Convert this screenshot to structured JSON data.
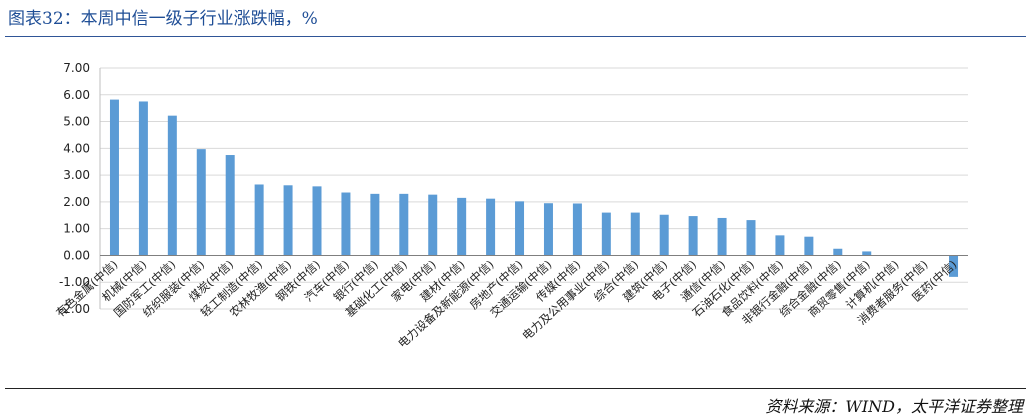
{
  "header": {
    "title": "图表32：本周中信一级子行业涨跌幅，%"
  },
  "footer": {
    "source": "资料来源：WIND，太平洋证券整理"
  },
  "colors": {
    "bar": "#5b9bd5",
    "title": "#1f4e96",
    "grid": "#d9d9d9"
  },
  "chart_data": {
    "type": "bar",
    "title": "",
    "xlabel": "",
    "ylabel": "",
    "ylim": [
      -2,
      7
    ],
    "yticks": [
      "7.00",
      "6.00",
      "5.00",
      "4.00",
      "3.00",
      "2.00",
      "1.00",
      "0.00",
      "-1.00",
      "-2.00"
    ],
    "grid": true,
    "categories": [
      "有色金属(中信)",
      "机械(中信)",
      "国防军工(中信)",
      "纺织服装(中信)",
      "煤炭(中信)",
      "轻工制造(中信)",
      "农林牧渔(中信)",
      "钢铁(中信)",
      "汽车(中信)",
      "银行(中信)",
      "基础化工(中信)",
      "家电(中信)",
      "建材(中信)",
      "电力设备及新能源(中信)",
      "房地产(中信)",
      "交通运输(中信)",
      "传媒(中信)",
      "电力及公用事业(中信)",
      "综合(中信)",
      "建筑(中信)",
      "电子(中信)",
      "通信(中信)",
      "石油石化(中信)",
      "食品饮料(中信)",
      "非银行金融(中信)",
      "综合金融(中信)",
      "商贸零售(中信)",
      "计算机(中信)",
      "消费者服务(中信)",
      "医药(中信)"
    ],
    "values": [
      5.82,
      5.75,
      5.22,
      3.97,
      3.75,
      2.65,
      2.62,
      2.58,
      2.35,
      2.3,
      2.3,
      2.27,
      2.15,
      2.12,
      2.02,
      1.95,
      1.94,
      1.6,
      1.6,
      1.52,
      1.47,
      1.4,
      1.32,
      0.75,
      0.7,
      0.25,
      0.15,
      0.0,
      0.0,
      -0.8
    ]
  }
}
